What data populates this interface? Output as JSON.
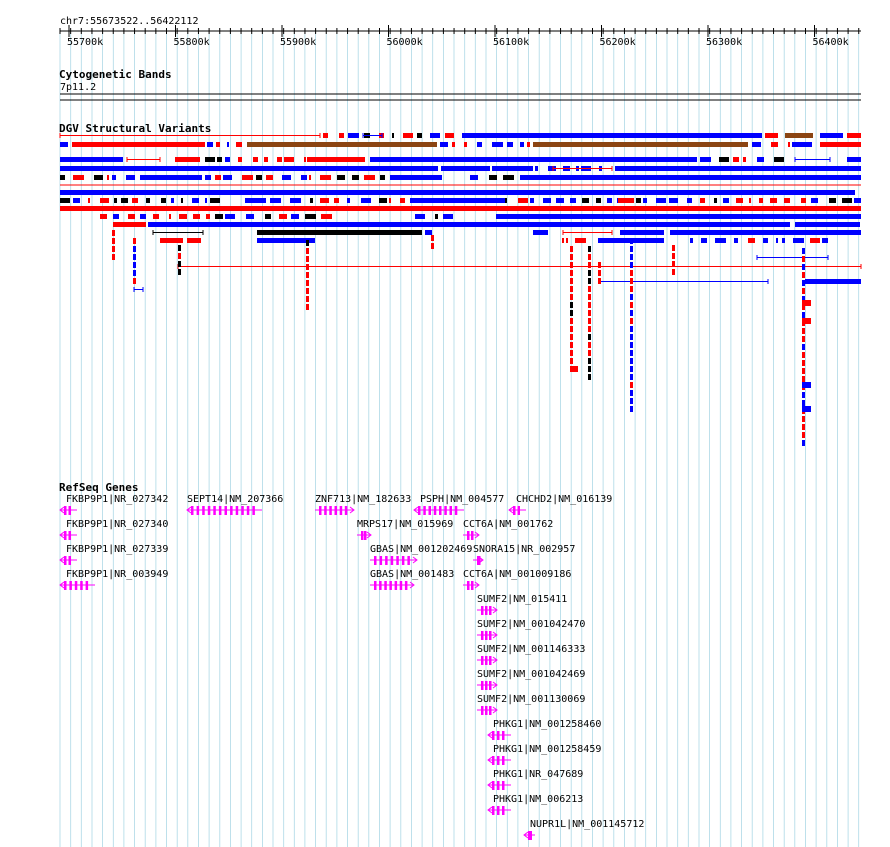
{
  "location": "chr7:55673522..56422112",
  "ruler_ticks": [
    "55700k",
    "55800k",
    "55900k",
    "56000k",
    "56100k",
    "56200k",
    "56300k",
    "56400k"
  ],
  "tracks": {
    "cytobands": {
      "title": "Cytogenetic Bands",
      "band": "7p11.2"
    },
    "dgv": {
      "title": "DGV Structural Variants"
    },
    "refseq": {
      "title": "RefSeq Genes"
    }
  },
  "colors": {
    "gain": "#0000ff",
    "loss": "#ff0000",
    "gain_loss": "#8b4513",
    "inversion": "#000000",
    "gene": "#ff00ff",
    "grid": "#add8e6"
  },
  "genes": [
    {
      "label": "FKBP9P1|NR_027342",
      "strand": "-"
    },
    {
      "label": "FKBP9P1|NR_027340",
      "strand": "-"
    },
    {
      "label": "FKBP9P1|NR_027339",
      "strand": "-"
    },
    {
      "label": "FKBP9P1|NR_003949",
      "strand": "-"
    },
    {
      "label": "SEPT14|NM_207366",
      "strand": "-"
    },
    {
      "label": "ZNF713|NM_182633",
      "strand": "+"
    },
    {
      "label": "MRPS17|NM_015969",
      "strand": "+"
    },
    {
      "label": "GBAS|NM_001202469",
      "strand": "+"
    },
    {
      "label": "GBAS|NM_001483",
      "strand": "+"
    },
    {
      "label": "PSPH|NM_004577",
      "strand": "-"
    },
    {
      "label": "CCT6A|NM_001762",
      "strand": "+"
    },
    {
      "label": "SNORA15|NR_002957",
      "strand": "+"
    },
    {
      "label": "CCT6A|NM_001009186",
      "strand": "+"
    },
    {
      "label": "CHCHD2|NM_016139",
      "strand": "-"
    },
    {
      "label": "SUMF2|NM_015411",
      "strand": "+"
    },
    {
      "label": "SUMF2|NM_001042470",
      "strand": "+"
    },
    {
      "label": "SUMF2|NM_001146333",
      "strand": "+"
    },
    {
      "label": "SUMF2|NM_001042469",
      "strand": "+"
    },
    {
      "label": "SUMF2|NM_001130069",
      "strand": "+"
    },
    {
      "label": "PHKG1|NM_001258460",
      "strand": "-"
    },
    {
      "label": "PHKG1|NM_001258459",
      "strand": "-"
    },
    {
      "label": "PHKG1|NR_047689",
      "strand": "-"
    },
    {
      "label": "PHKG1|NM_006213",
      "strand": "-"
    },
    {
      "label": "NUPR1L|NM_001145712",
      "strand": "-"
    }
  ]
}
